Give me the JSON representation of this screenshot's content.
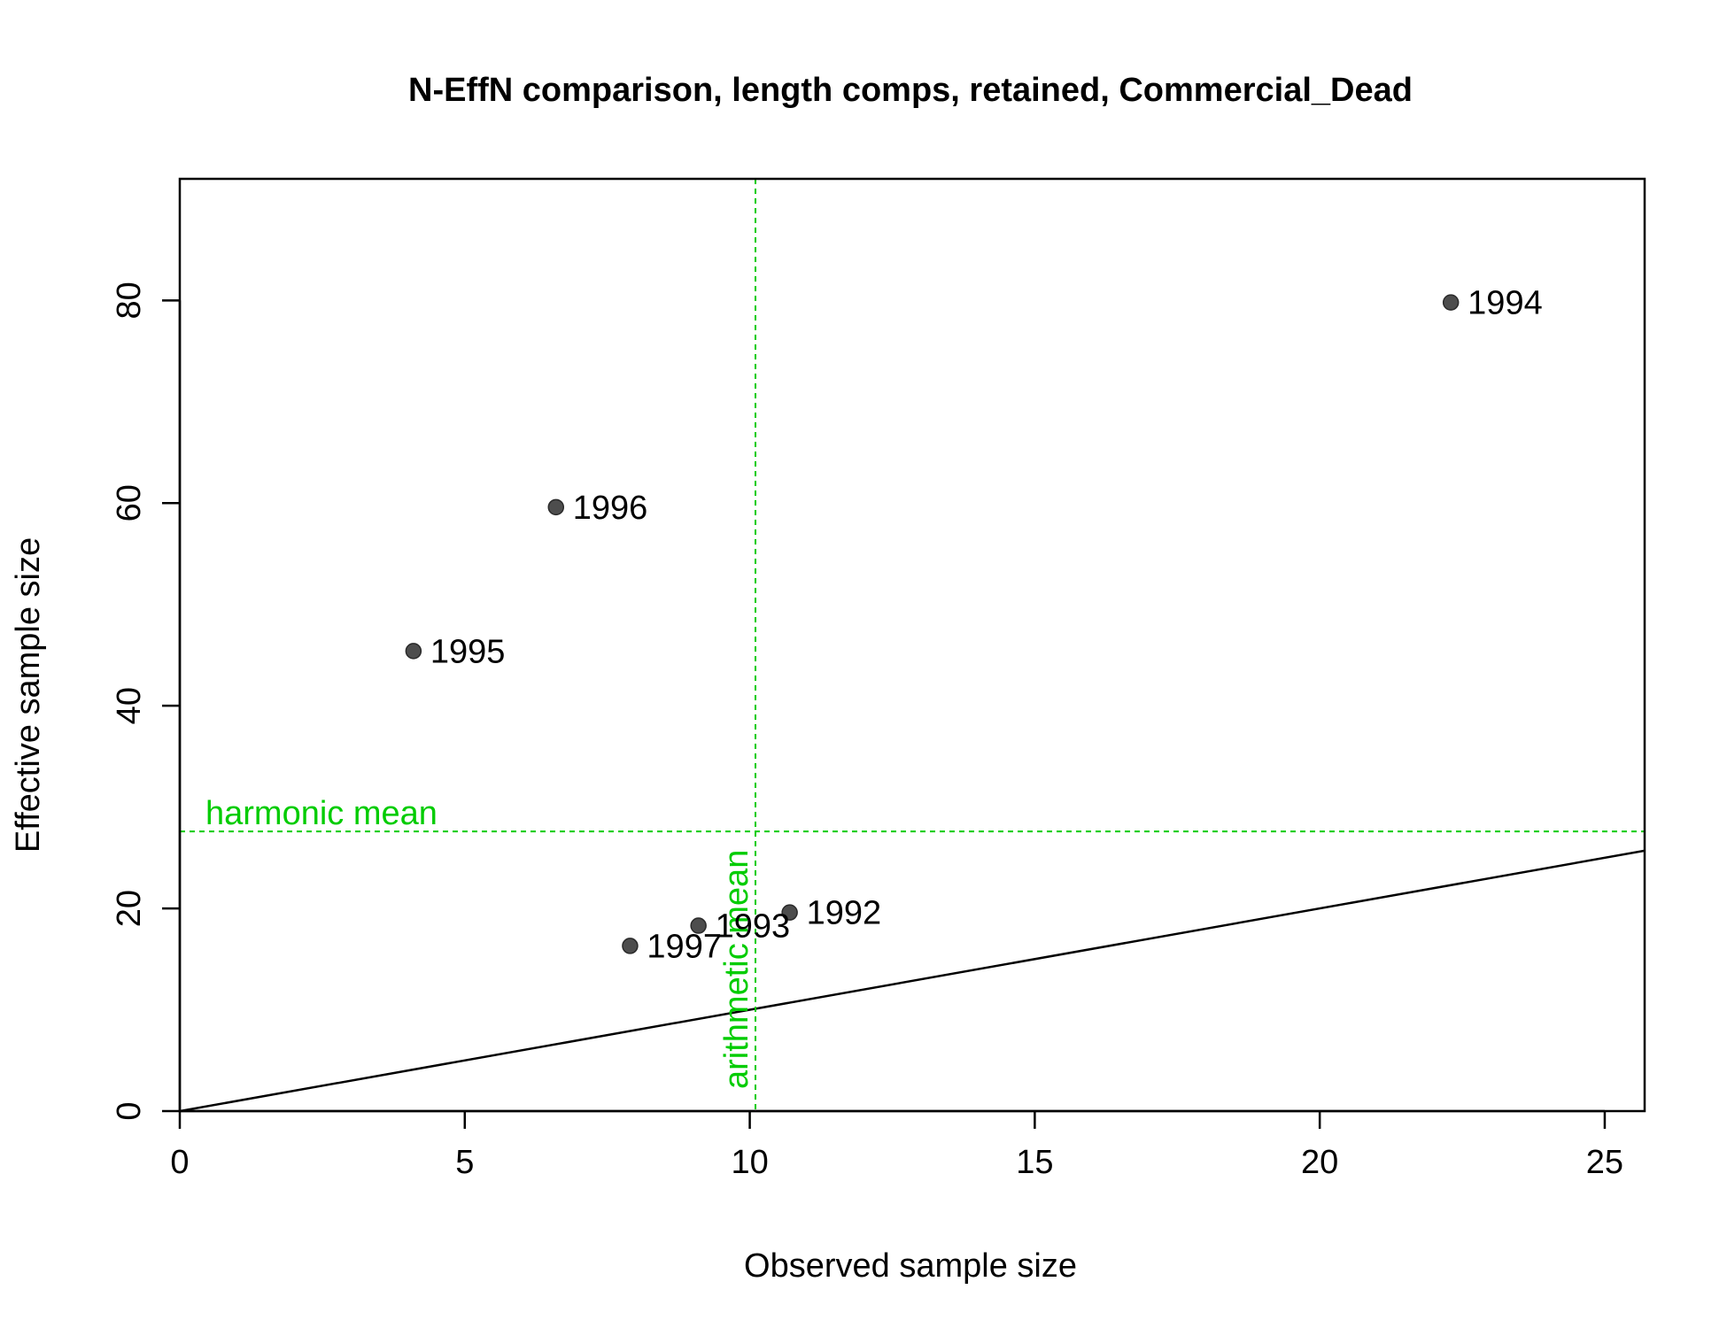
{
  "chart_data": {
    "type": "scatter",
    "title": "N-EffN comparison, length comps, retained, Commercial_Dead",
    "xlabel": "Observed sample size",
    "ylabel": "Effective sample size",
    "xlim": [
      0,
      25.7
    ],
    "ylim": [
      0,
      92
    ],
    "x_ticks": [
      0,
      5,
      10,
      15,
      20,
      25
    ],
    "y_ticks": [
      0,
      20,
      40,
      60,
      80
    ],
    "x_tick_labels": [
      "0",
      "5",
      "10",
      "15",
      "20",
      "25"
    ],
    "y_tick_labels": [
      "0",
      "20",
      "40",
      "60",
      "80"
    ],
    "grid": false,
    "point_color": "#4d4d4d",
    "points": [
      {
        "label": "1992",
        "x": 10.7,
        "y": 19.6
      },
      {
        "label": "1993",
        "x": 9.1,
        "y": 18.3
      },
      {
        "label": "1994",
        "x": 22.3,
        "y": 79.8
      },
      {
        "label": "1995",
        "x": 4.1,
        "y": 45.4
      },
      {
        "label": "1996",
        "x": 6.6,
        "y": 59.6
      },
      {
        "label": "1997",
        "x": 7.9,
        "y": 16.3
      }
    ],
    "reference_lines": {
      "identity": {
        "slope": 1,
        "intercept": 0,
        "color": "#000000"
      },
      "harmonic_mean": {
        "label": "harmonic mean",
        "y": 27.6,
        "color": "#00cc00"
      },
      "arithmetic_mean": {
        "label": "arithmetic mean",
        "x": 10.1,
        "color": "#00cc00"
      }
    }
  }
}
